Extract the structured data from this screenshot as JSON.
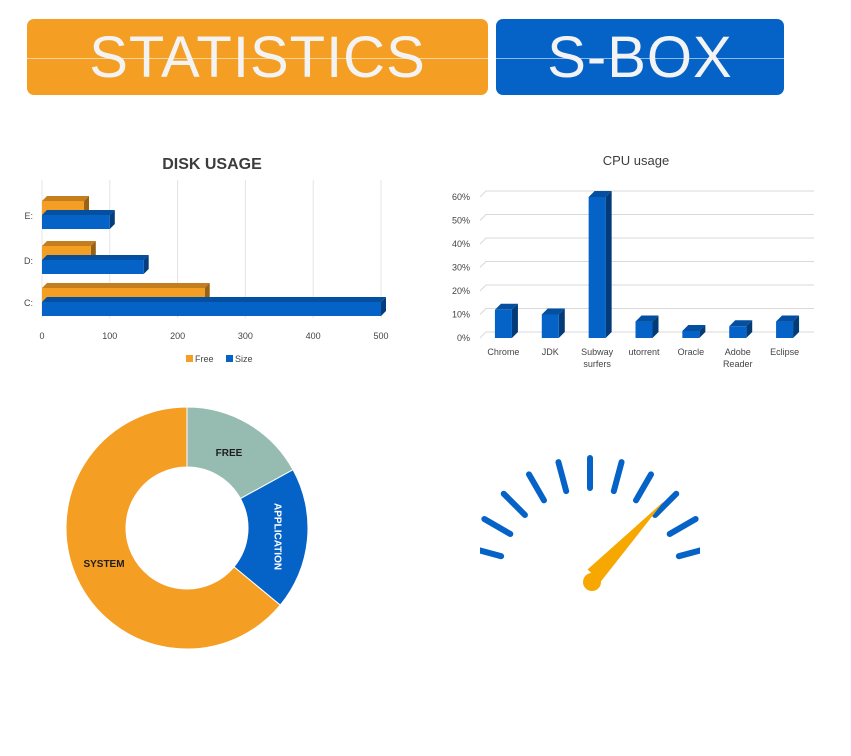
{
  "header": {
    "left_title": "STATISTICS",
    "right_title": "S-BOX"
  },
  "colors": {
    "orange": "#f59e24",
    "blue": "#0563c8",
    "teal": "#96bbb0"
  },
  "chart_data": [
    {
      "type": "bar",
      "orientation": "horizontal",
      "title": "DISK USAGE",
      "categories": [
        "C:",
        "D:",
        "E:"
      ],
      "series": [
        {
          "name": "Free",
          "values": [
            240,
            72,
            62
          ],
          "color": "#f59e24"
        },
        {
          "name": "Size",
          "values": [
            500,
            150,
            100
          ],
          "color": "#0563c8"
        }
      ],
      "xlim": [
        0,
        500
      ],
      "xticks": [
        "0",
        "100",
        "200",
        "300",
        "400",
        "500"
      ],
      "grid": true,
      "legend": "bottom"
    },
    {
      "type": "bar",
      "title": "CPU usage",
      "categories": [
        "Chrome",
        "JDK",
        "Subway surfers",
        "utorrent",
        "Oracle",
        "Adobe Reader",
        "Eclipse"
      ],
      "values": [
        12,
        10,
        60,
        7,
        3,
        5,
        7
      ],
      "ylim": [
        0,
        60
      ],
      "yticks": [
        "0%",
        "10%",
        "20%",
        "30%",
        "40%",
        "50%",
        "60%"
      ],
      "grid": true,
      "color": "#0563c8"
    },
    {
      "type": "pie",
      "style": "donut",
      "labels": [
        "FREE",
        "APPLICATION",
        "SYSTEM"
      ],
      "values": [
        17,
        19,
        64
      ],
      "colors": [
        "#96bbb0",
        "#0563c8",
        "#f59e24"
      ]
    }
  ],
  "gauge": {
    "needle_value": 0.74,
    "tick_color": "#0563c8",
    "needle_color": "#f7a800"
  }
}
